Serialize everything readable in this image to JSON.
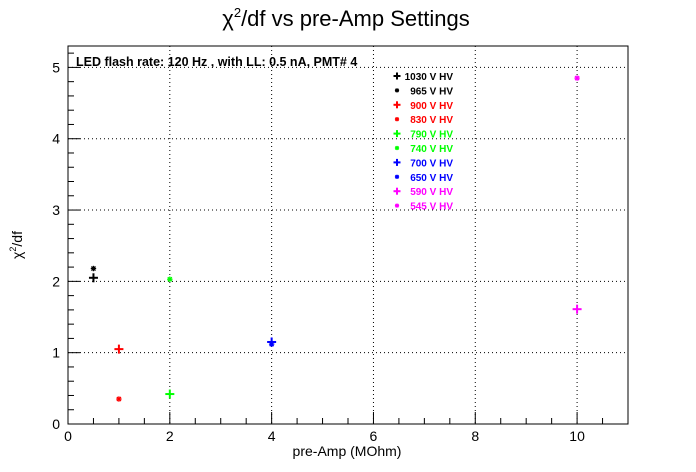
{
  "chart_data": {
    "type": "scatter",
    "title_main": "χ",
    "title_sup": "2",
    "title_rest": "/df vs pre-Amp Settings",
    "xlabel": "pre-Amp (MOhm)",
    "ylabel_main": "χ",
    "ylabel_sup": "2",
    "ylabel_rest": "/df",
    "annotation": "LED flash rate: 120 Hz , with LL: 0.5 nA, PMT# 4",
    "xlim": [
      0,
      11
    ],
    "ylim": [
      0,
      5.3
    ],
    "xticks": [
      0,
      2,
      4,
      6,
      8,
      10
    ],
    "yticks": [
      0,
      1,
      2,
      3,
      4,
      5
    ],
    "grid": true,
    "legend_position": "top-right",
    "series": [
      {
        "name": "1030 V HV",
        "color": "#000000",
        "marker": "plus",
        "points": [
          [
            0.5,
            2.05
          ]
        ]
      },
      {
        "name": "965 V HV",
        "color": "#000000",
        "marker": "star",
        "points": [
          [
            0.5,
            2.18
          ]
        ]
      },
      {
        "name": "900 V HV",
        "color": "#ff0000",
        "marker": "plus",
        "points": [
          [
            1,
            1.05
          ]
        ]
      },
      {
        "name": "830 V HV",
        "color": "#ff0000",
        "marker": "star",
        "points": [
          [
            1,
            0.35
          ]
        ]
      },
      {
        "name": "790 V HV",
        "color": "#00ff00",
        "marker": "plus",
        "points": [
          [
            2,
            0.42
          ]
        ]
      },
      {
        "name": "740 V HV",
        "color": "#00ff00",
        "marker": "star",
        "points": [
          [
            2,
            2.03
          ]
        ]
      },
      {
        "name": "700 V HV",
        "color": "#0000ff",
        "marker": "plus",
        "points": [
          [
            4,
            1.15
          ]
        ]
      },
      {
        "name": "650 V HV",
        "color": "#0000ff",
        "marker": "star",
        "points": [
          [
            4,
            1.12
          ]
        ]
      },
      {
        "name": "590 V HV",
        "color": "#ff00ff",
        "marker": "plus",
        "points": [
          [
            10,
            1.61
          ]
        ]
      },
      {
        "name": "545 V HV",
        "color": "#ff00ff",
        "marker": "star",
        "points": [
          [
            10,
            4.85
          ]
        ]
      }
    ]
  }
}
